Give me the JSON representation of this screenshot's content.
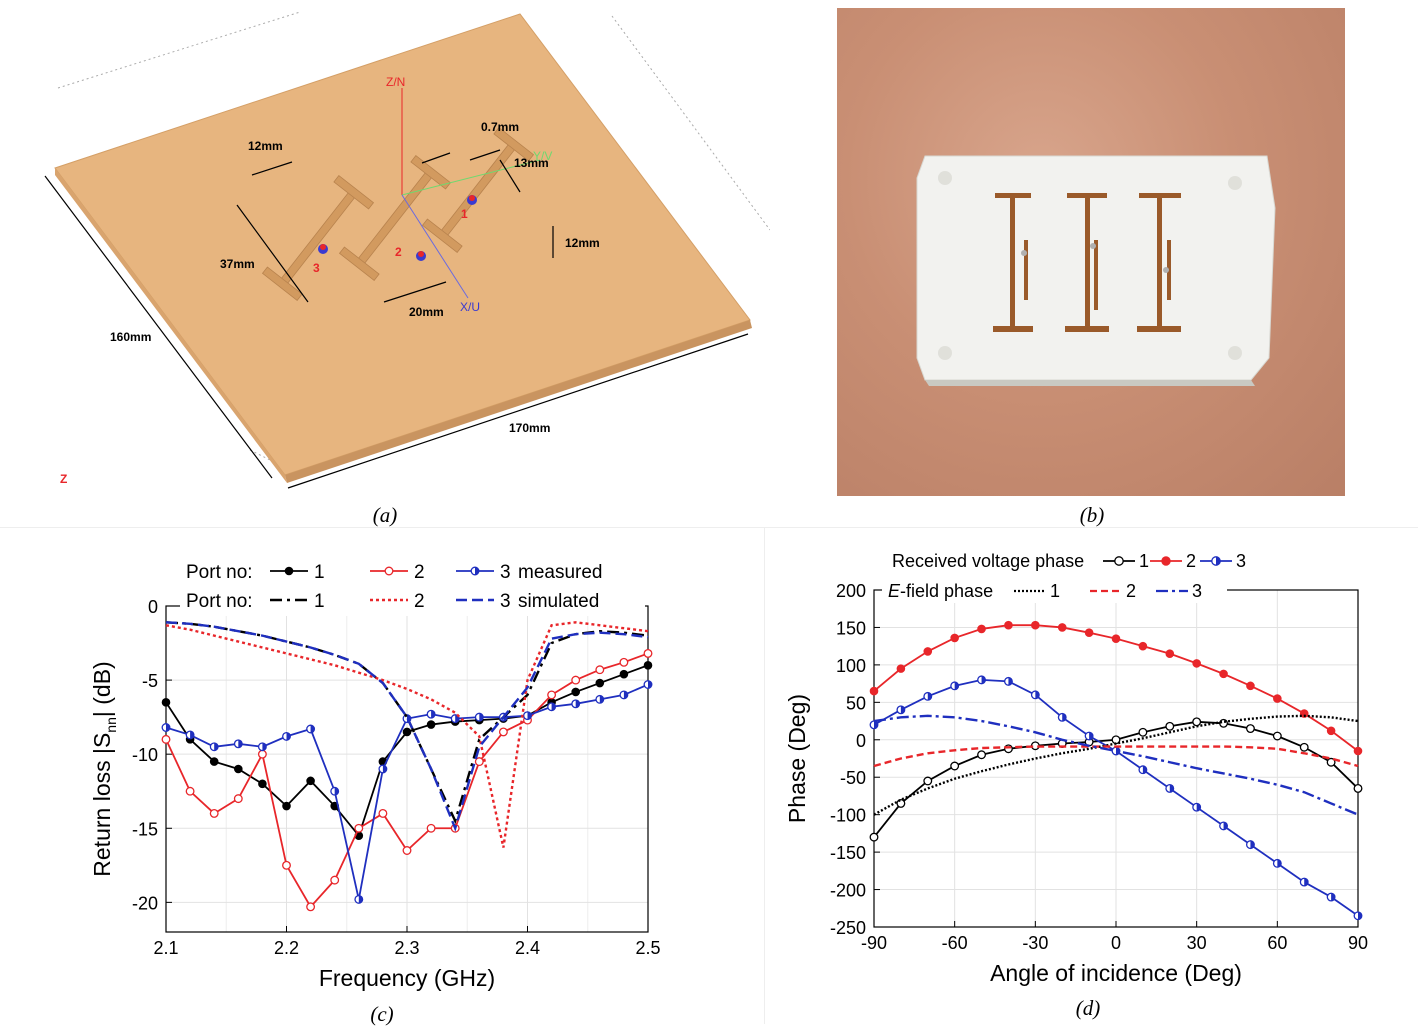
{
  "panel_a": {
    "caption": "(a)",
    "axis_z": "Z/N",
    "axis_x": "X/U",
    "axis_y": "Y/V",
    "dims": {
      "d12a": "12mm",
      "d07": "0.7mm",
      "d13": "13mm",
      "d37": "37mm",
      "d12b": "12mm",
      "d20": "20mm",
      "d160": "160mm",
      "d170": "170mm"
    },
    "ports": [
      "1",
      "2",
      "3"
    ],
    "corner_label": "Z"
  },
  "panel_b": {
    "caption": "(b)"
  },
  "panel_c": {
    "caption": "(c)"
  },
  "panel_d": {
    "caption": "(d)"
  },
  "colors": {
    "port1": "#000000",
    "port2": "#e8262a",
    "port3": "#1f2fbf",
    "board": "#e7b57f",
    "patch": "#d9a36a"
  },
  "chart_data": [
    {
      "type": "line",
      "panel": "(c)",
      "xlabel": "Frequency (GHz)",
      "ylabel": "Return loss |S",
      "ylabel_sub": "nn",
      "ylabel_end": "| (dB)",
      "xlim": [
        2.1,
        2.5
      ],
      "ylim": [
        -22,
        0
      ],
      "xticks": [
        "2.1",
        "2.2",
        "2.3",
        "2.4",
        "2.5"
      ],
      "yticks": [
        "0",
        "-5",
        "-10",
        "-15",
        "-20"
      ],
      "grid": true,
      "legend": {
        "row1_prefix": "Port no:",
        "row1_suffix": "measured",
        "row2_prefix": "Port no:",
        "row2_suffix": "simulated",
        "names": [
          "1",
          "2",
          "3"
        ]
      },
      "x": [
        2.1,
        2.12,
        2.14,
        2.16,
        2.18,
        2.2,
        2.22,
        2.24,
        2.26,
        2.28,
        2.3,
        2.32,
        2.34,
        2.36,
        2.38,
        2.4,
        2.42,
        2.44,
        2.46,
        2.48,
        2.5
      ],
      "series": [
        {
          "name": "1",
          "kind": "measured",
          "color": "#000000",
          "marker": "filled",
          "values": [
            -6.5,
            -9.0,
            -10.5,
            -11.0,
            -12.0,
            -13.5,
            -11.8,
            -13.5,
            -15.5,
            -10.5,
            -8.5,
            -8.0,
            -7.8,
            -7.7,
            -7.6,
            -7.4,
            -6.5,
            -5.8,
            -5.2,
            -4.6,
            -4.0
          ]
        },
        {
          "name": "2",
          "kind": "measured",
          "color": "#e8262a",
          "marker": "open",
          "values": [
            -9.0,
            -12.5,
            -14.0,
            -13.0,
            -10.0,
            -17.5,
            -20.3,
            -18.5,
            -15.0,
            -14.0,
            -16.5,
            -15.0,
            -15.0,
            -10.5,
            -8.5,
            -7.7,
            -6.0,
            -5.0,
            -4.3,
            -3.8,
            -3.2
          ]
        },
        {
          "name": "3",
          "kind": "measured",
          "color": "#1f2fbf",
          "marker": "half",
          "values": [
            -8.2,
            -8.7,
            -9.5,
            -9.3,
            -9.5,
            -8.8,
            -8.3,
            -12.5,
            -19.8,
            -11.0,
            -7.6,
            -7.3,
            -7.6,
            -7.5,
            -7.5,
            -7.4,
            -6.8,
            -6.6,
            -6.3,
            -6.0,
            -5.3
          ]
        },
        {
          "name": "1",
          "kind": "simulated",
          "color": "#000000",
          "dash": "12,5,3,5",
          "values": [
            -1.1,
            -1.2,
            -1.4,
            -1.7,
            -2.0,
            -2.4,
            -2.8,
            -3.3,
            -3.9,
            -5.2,
            -7.5,
            -11.0,
            -14.5,
            -9.0,
            -7.5,
            -6.0,
            -2.5,
            -1.9,
            -1.7,
            -1.8,
            -2.0
          ]
        },
        {
          "name": "2",
          "kind": "simulated",
          "color": "#e8262a",
          "dash": "3,3",
          "values": [
            -1.3,
            -1.6,
            -2.0,
            -2.4,
            -2.8,
            -3.2,
            -3.6,
            -4.0,
            -4.5,
            -5.0,
            -5.6,
            -6.3,
            -7.2,
            -8.8,
            -16.3,
            -5.0,
            -1.3,
            -1.1,
            -1.3,
            -1.5,
            -1.7
          ]
        },
        {
          "name": "3",
          "kind": "simulated",
          "color": "#1f2fbf",
          "dash": "11,5",
          "values": [
            -1.1,
            -1.2,
            -1.4,
            -1.7,
            -2.0,
            -2.4,
            -2.8,
            -3.3,
            -3.9,
            -5.2,
            -7.5,
            -11.0,
            -15.0,
            -9.5,
            -7.5,
            -5.5,
            -2.2,
            -1.9,
            -1.8,
            -1.9,
            -2.1
          ]
        }
      ]
    },
    {
      "type": "line",
      "panel": "(d)",
      "xlabel": "Angle of incidence (Deg)",
      "ylabel": "Phase (Deg)",
      "xlim": [
        -90,
        90
      ],
      "ylim": [
        -250,
        200
      ],
      "xticks": [
        "-90",
        "-60",
        "-30",
        "0",
        "30",
        "60",
        "90"
      ],
      "yticks": [
        "200",
        "150",
        "100",
        "50",
        "0",
        "-50",
        "-100",
        "-150",
        "-200",
        "-250"
      ],
      "grid": true,
      "legend": {
        "row1_prefix": "Received voltage phase",
        "row2_prefix_italic": "E",
        "row2_prefix": "-field phase",
        "names": [
          "1",
          "2",
          "3"
        ]
      },
      "x": [
        -90,
        -80,
        -70,
        -60,
        -50,
        -40,
        -30,
        -20,
        -10,
        0,
        10,
        20,
        30,
        40,
        50,
        60,
        70,
        80,
        90
      ],
      "series": [
        {
          "name": "1",
          "kind": "received",
          "color": "#000000",
          "marker": "open",
          "values": [
            -130,
            -85,
            -55,
            -35,
            -20,
            -12,
            -8,
            -5,
            -3,
            0,
            10,
            18,
            24,
            22,
            15,
            5,
            -10,
            -30,
            -65
          ]
        },
        {
          "name": "2",
          "kind": "received",
          "color": "#e8262a",
          "marker": "filled",
          "values": [
            65,
            95,
            118,
            136,
            148,
            153,
            153,
            150,
            143,
            135,
            125,
            115,
            102,
            88,
            72,
            55,
            35,
            12,
            -15
          ]
        },
        {
          "name": "3",
          "kind": "received",
          "color": "#1f2fbf",
          "marker": "half",
          "values": [
            20,
            40,
            58,
            72,
            80,
            78,
            60,
            30,
            5,
            -15,
            -40,
            -65,
            -90,
            -115,
            -140,
            -165,
            -190,
            -210,
            -235
          ]
        },
        {
          "name": "1",
          "kind": "efield",
          "color": "#000000",
          "dash": "2,2",
          "values": [
            -100,
            -80,
            -65,
            -52,
            -42,
            -33,
            -25,
            -18,
            -12,
            -5,
            2,
            10,
            18,
            24,
            28,
            31,
            32,
            30,
            25
          ]
        },
        {
          "name": "2",
          "kind": "efield",
          "color": "#e8262a",
          "dash": "7,4",
          "values": [
            -35,
            -25,
            -18,
            -14,
            -11,
            -10,
            -9,
            -9,
            -9,
            -9,
            -9,
            -9,
            -9,
            -9,
            -10,
            -12,
            -18,
            -25,
            -35
          ]
        },
        {
          "name": "3",
          "kind": "efield",
          "color": "#1f2fbf",
          "dash": "12,4,3,4",
          "values": [
            25,
            30,
            32,
            30,
            25,
            18,
            10,
            0,
            -8,
            -15,
            -22,
            -30,
            -38,
            -45,
            -52,
            -60,
            -70,
            -85,
            -100
          ]
        }
      ]
    }
  ]
}
